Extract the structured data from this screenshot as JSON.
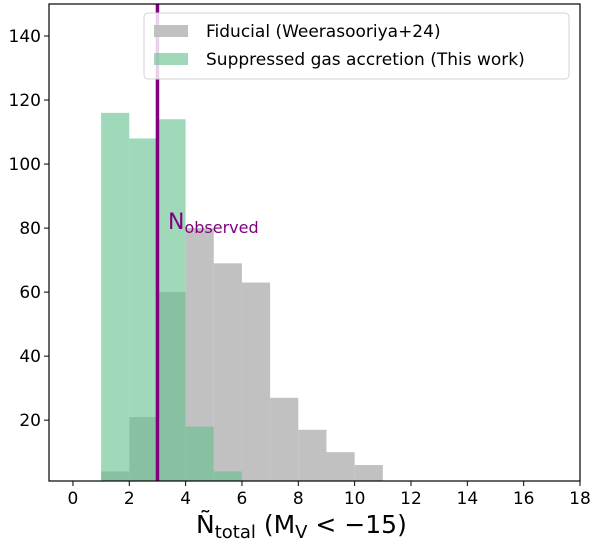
{
  "chart_data": {
    "type": "bar",
    "subtype": "overlaid-histogram",
    "bin_width": 1,
    "x_bin_starts": [
      1,
      2,
      3,
      4,
      5,
      6,
      7,
      8,
      9,
      10
    ],
    "series": [
      {
        "name": "Fiducial (Weerasooriya+24)",
        "color": "#bebebe",
        "opacity": 0.95,
        "values": [
          4,
          21,
          60,
          80,
          69,
          63,
          27,
          17,
          10,
          6
        ]
      },
      {
        "name": "Suppressed gas accretion (This work)",
        "color": "#66c28f",
        "opacity": 0.62,
        "values": [
          116,
          108,
          114,
          18,
          4,
          0,
          0,
          0,
          0,
          0
        ]
      }
    ],
    "vline": {
      "x": 3,
      "color": "#800080",
      "label_main": "N",
      "label_sub": "observed"
    },
    "xlabel": {
      "main": "Ñ",
      "sub1": "total",
      "open": " (M",
      "sub2": "V",
      "close": " < −15)"
    },
    "xlim": [
      -0.85,
      18
    ],
    "ylim": [
      1,
      150
    ],
    "x_ticks": [
      0,
      2,
      4,
      6,
      8,
      10,
      12,
      14,
      16,
      18
    ],
    "y_ticks": [
      20,
      40,
      60,
      80,
      100,
      120,
      140
    ],
    "legend_position": "top-right",
    "grid": false
  }
}
